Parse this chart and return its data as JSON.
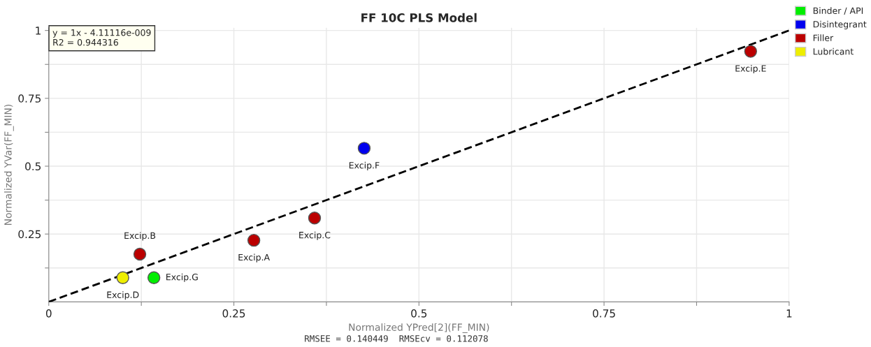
{
  "chart_data": {
    "type": "scatter",
    "title": "FF 10C PLS Model",
    "xlabel": "Normalized YPred[2](FF_MIN)",
    "ylabel": "Normalized YVar(FF_MIN)",
    "xlim": [
      0,
      1.0
    ],
    "ylim": [
      0,
      1.01
    ],
    "xticks": [
      0,
      {
        "value": 0.125,
        "label": null
      },
      0.25,
      {
        "value": 0.375,
        "label": null
      },
      0.5,
      {
        "value": 0.625,
        "label": null
      },
      0.75,
      {
        "value": 0.875,
        "label": null
      },
      1
    ],
    "yticks": [
      {
        "value": 0.125,
        "label": null
      },
      0.25,
      {
        "value": 0.375,
        "label": null
      },
      0.5,
      {
        "value": 0.625,
        "label": null
      },
      0.75,
      {
        "value": 0.875,
        "label": null
      },
      1
    ],
    "grid": true,
    "legend": "top right",
    "marker": "circle",
    "series": [
      {
        "name": "Binder / API",
        "color": "#00ee00",
        "x": [
          0.142
        ],
        "values": [
          0.089
        ]
      },
      {
        "name": "Disintegrant",
        "color": "#0000ee",
        "x": [
          0.426
        ],
        "values": [
          0.566
        ]
      },
      {
        "name": "Filler",
        "color": "#bb0000",
        "x": [
          0.277,
          0.123,
          0.359,
          0.948
        ],
        "values": [
          0.227,
          0.176,
          0.309,
          0.923
        ]
      },
      {
        "name": "Lubricant",
        "color": "#eeee00",
        "x": [
          0.1
        ],
        "values": [
          0.089
        ]
      },
      {
        "type": "line",
        "color": "#000000",
        "line_style": "dashed",
        "marker": "none",
        "x": [
          0,
          1
        ],
        "values": [
          0,
          1
        ]
      }
    ],
    "annotations": [
      "y = 1x - 4.11116e-009",
      "R2 = 0.944316",
      {
        "text": "Excip.A",
        "x": 0.277,
        "y": 0.227
      },
      {
        "text": "Excip.B",
        "x": 0.123,
        "y": 0.176
      },
      {
        "text": "Excip.C",
        "x": 0.359,
        "y": 0.309
      },
      {
        "text": "Excip.D",
        "x": 0.1,
        "y": 0.089
      },
      {
        "text": "Excip.E",
        "x": 0.948,
        "y": 0.923
      },
      {
        "text": "Excip.F",
        "x": 0.426,
        "y": 0.566
      },
      {
        "text": "Excip.G",
        "x": 0.142,
        "y": 0.089
      },
      "RMSEE = 0.140449  RMSEcv = 0.112078"
    ]
  }
}
